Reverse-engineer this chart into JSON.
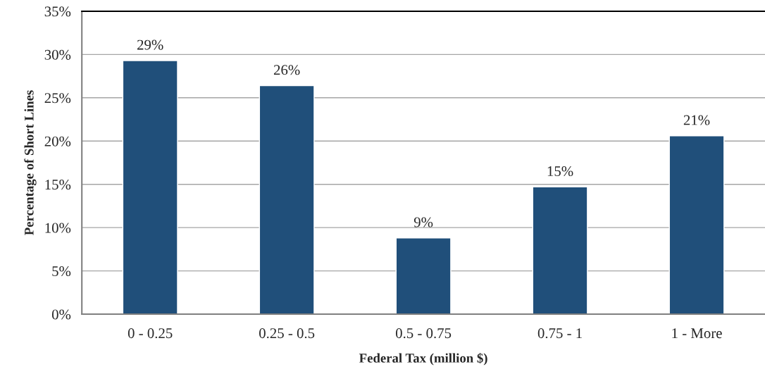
{
  "chart_data": {
    "type": "bar",
    "xlabel": "Federal Tax (million $)",
    "ylabel": "Percentage of Short Lines",
    "categories": [
      "0 - 0.25",
      "0.25 - 0.5",
      "0.5 - 0.75",
      "0.75 - 1",
      "1 - More"
    ],
    "values": [
      29.3,
      26.4,
      8.8,
      14.7,
      20.6
    ],
    "value_labels": [
      "29%",
      "26%",
      "9%",
      "15%",
      "21%"
    ],
    "color": "#204f7a",
    "ylim": [
      0,
      35
    ],
    "yticks": [
      {
        "value": 0,
        "label": "0%"
      },
      {
        "value": 5,
        "label": "5%"
      },
      {
        "value": 10,
        "label": "10%"
      },
      {
        "value": 15,
        "label": "15%"
      },
      {
        "value": 20,
        "label": "20%"
      },
      {
        "value": 25,
        "label": "25%"
      },
      {
        "value": 30,
        "label": "30%"
      },
      {
        "value": 35,
        "label": "35%"
      }
    ],
    "grid": "y",
    "legend": false
  }
}
